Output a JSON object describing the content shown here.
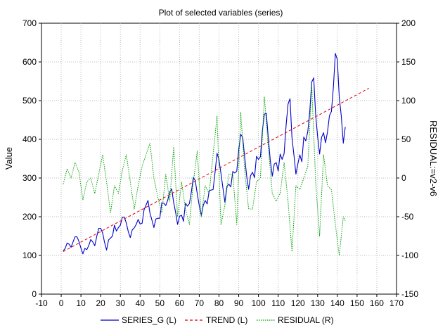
{
  "chart_data": {
    "type": "line",
    "title": "Plot of selected variables (series)",
    "ylabel": "Value",
    "ylabel_right": "RESIDUAL:=v2-v6",
    "xlim": [
      -10,
      170
    ],
    "ylim": [
      0,
      700
    ],
    "ylim_right": [
      -150,
      200
    ],
    "x_ticks": [
      -10,
      0,
      10,
      20,
      30,
      40,
      50,
      60,
      70,
      80,
      90,
      100,
      110,
      120,
      130,
      140,
      150,
      160,
      170
    ],
    "y_ticks": [
      0,
      100,
      200,
      300,
      400,
      500,
      600,
      700
    ],
    "y_ticks_right": [
      -150,
      -100,
      -50,
      0,
      50,
      100,
      150,
      200
    ],
    "grid": true,
    "legend_position": "bottom-center",
    "series": [
      {
        "name": "SERIES_G (L)",
        "axis": "left",
        "color": "#0000cc",
        "style": "solid",
        "x": [
          1,
          2,
          3,
          4,
          5,
          6,
          7,
          8,
          9,
          10,
          11,
          12,
          13,
          14,
          15,
          16,
          17,
          18,
          19,
          20,
          21,
          22,
          23,
          24,
          25,
          26,
          27,
          28,
          29,
          30,
          31,
          32,
          33,
          34,
          35,
          36,
          37,
          38,
          39,
          40,
          41,
          42,
          43,
          44,
          45,
          46,
          47,
          48,
          49,
          50,
          51,
          52,
          53,
          54,
          55,
          56,
          57,
          58,
          59,
          60,
          61,
          62,
          63,
          64,
          65,
          66,
          67,
          68,
          69,
          70,
          71,
          72,
          73,
          74,
          75,
          76,
          77,
          78,
          79,
          80,
          81,
          82,
          83,
          84,
          85,
          86,
          87,
          88,
          89,
          90,
          91,
          92,
          93,
          94,
          95,
          96,
          97,
          98,
          99,
          100,
          101,
          102,
          103,
          104,
          105,
          106,
          107,
          108,
          109,
          110,
          111,
          112,
          113,
          114,
          115,
          116,
          117,
          118,
          119,
          120,
          121,
          122,
          123,
          124,
          125,
          126,
          127,
          128,
          129,
          130,
          131,
          132,
          133,
          134,
          135,
          136,
          137,
          138,
          139,
          140,
          141,
          142,
          143,
          144
        ],
        "y": [
          112,
          118,
          132,
          129,
          121,
          135,
          148,
          148,
          136,
          119,
          104,
          118,
          115,
          126,
          141,
          135,
          125,
          149,
          170,
          170,
          158,
          133,
          114,
          140,
          145,
          150,
          178,
          163,
          172,
          178,
          199,
          199,
          184,
          162,
          146,
          166,
          171,
          180,
          193,
          181,
          183,
          218,
          230,
          242,
          209,
          191,
          172,
          194,
          196,
          196,
          236,
          235,
          229,
          243,
          264,
          272,
          237,
          211,
          180,
          201,
          204,
          188,
          235,
          227,
          234,
          264,
          302,
          293,
          259,
          229,
          203,
          229,
          242,
          233,
          267,
          269,
          270,
          315,
          364,
          347,
          312,
          274,
          237,
          278,
          284,
          277,
          317,
          313,
          318,
          374,
          413,
          405,
          355,
          306,
          271,
          306,
          315,
          301,
          356,
          348,
          355,
          422,
          465,
          467,
          404,
          347,
          305,
          336,
          340,
          318,
          362,
          348,
          363,
          435,
          491,
          505,
          404,
          359,
          310,
          337,
          360,
          342,
          406,
          396,
          420,
          472,
          548,
          559,
          463,
          407,
          362,
          405,
          417,
          391,
          419,
          461,
          472,
          535,
          622,
          606,
          508,
          461,
          390,
          432
        ]
      },
      {
        "name": "TREND (L)",
        "axis": "left",
        "color": "#e00000",
        "style": "dashed",
        "x": [
          1,
          156
        ],
        "y": [
          110,
          532
        ]
      },
      {
        "name": "RESIDUAL (R)",
        "axis": "right",
        "color": "#00a000",
        "style": "dotted",
        "x": [
          1,
          3,
          5,
          7,
          9,
          11,
          13,
          15,
          17,
          19,
          21,
          23,
          25,
          27,
          29,
          31,
          33,
          35,
          37,
          39,
          41,
          43,
          45,
          47,
          49,
          51,
          53,
          55,
          57,
          59,
          61,
          63,
          65,
          67,
          69,
          71,
          73,
          75,
          77,
          79,
          81,
          83,
          85,
          87,
          89,
          91,
          93,
          95,
          97,
          99,
          101,
          103,
          105,
          107,
          109,
          111,
          113,
          115,
          117,
          119,
          121,
          123,
          125,
          127,
          129,
          131,
          133,
          135,
          137,
          139,
          141,
          143,
          144
        ],
        "y": [
          -8,
          12,
          0,
          20,
          8,
          -28,
          -5,
          0,
          -20,
          5,
          30,
          -5,
          -45,
          -10,
          -20,
          10,
          30,
          -5,
          -40,
          -10,
          15,
          30,
          45,
          0,
          -25,
          -45,
          5,
          -30,
          40,
          -50,
          -5,
          -40,
          -60,
          -5,
          35,
          -50,
          -10,
          -20,
          30,
          80,
          -60,
          -35,
          5,
          5,
          -60,
          85,
          10,
          -40,
          -40,
          -5,
          0,
          105,
          40,
          -20,
          -30,
          -20,
          20,
          -30,
          -95,
          -10,
          -15,
          0,
          15,
          120,
          -5,
          -75,
          30,
          -10,
          -15,
          -60,
          -100,
          -50,
          -55
        ]
      }
    ]
  }
}
